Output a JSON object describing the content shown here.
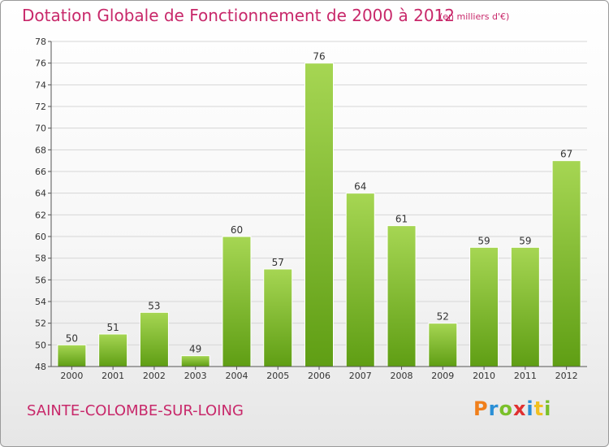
{
  "header": {
    "title": "Dotation Globale de Fonctionnement de 2000 à 2012",
    "subtitle": "(en milliers d'€)"
  },
  "footer": {
    "commune": "SAINTE-COLOMBE-SUR-LOING",
    "logo": "Proxiti"
  },
  "colors": {
    "title": "#c8286a",
    "bar_top": "#a6d653",
    "bar_bottom": "#5f9e14",
    "grid": "#d6d6d6",
    "axis": "#555555",
    "logo_letters": [
      "#f07f1b",
      "#2a8fd6",
      "#7ac02a",
      "#e03030",
      "#2a8fd6",
      "#f0c020",
      "#7ac02a"
    ]
  },
  "chart_data": {
    "type": "bar",
    "categories": [
      "2000",
      "2001",
      "2002",
      "2003",
      "2004",
      "2005",
      "2006",
      "2007",
      "2008",
      "2009",
      "2010",
      "2011",
      "2012"
    ],
    "values": [
      50,
      51,
      53,
      49,
      60,
      57,
      76,
      64,
      61,
      52,
      59,
      59,
      67
    ],
    "title": "Dotation Globale de Fonctionnement de 2000 à 2012",
    "subtitle": "(en milliers d'€)",
    "ylim": [
      48,
      78
    ],
    "yticks": [
      48,
      50,
      52,
      54,
      56,
      58,
      60,
      62,
      64,
      66,
      68,
      70,
      72,
      74,
      76,
      78
    ],
    "grid": true,
    "data_labels": true
  }
}
